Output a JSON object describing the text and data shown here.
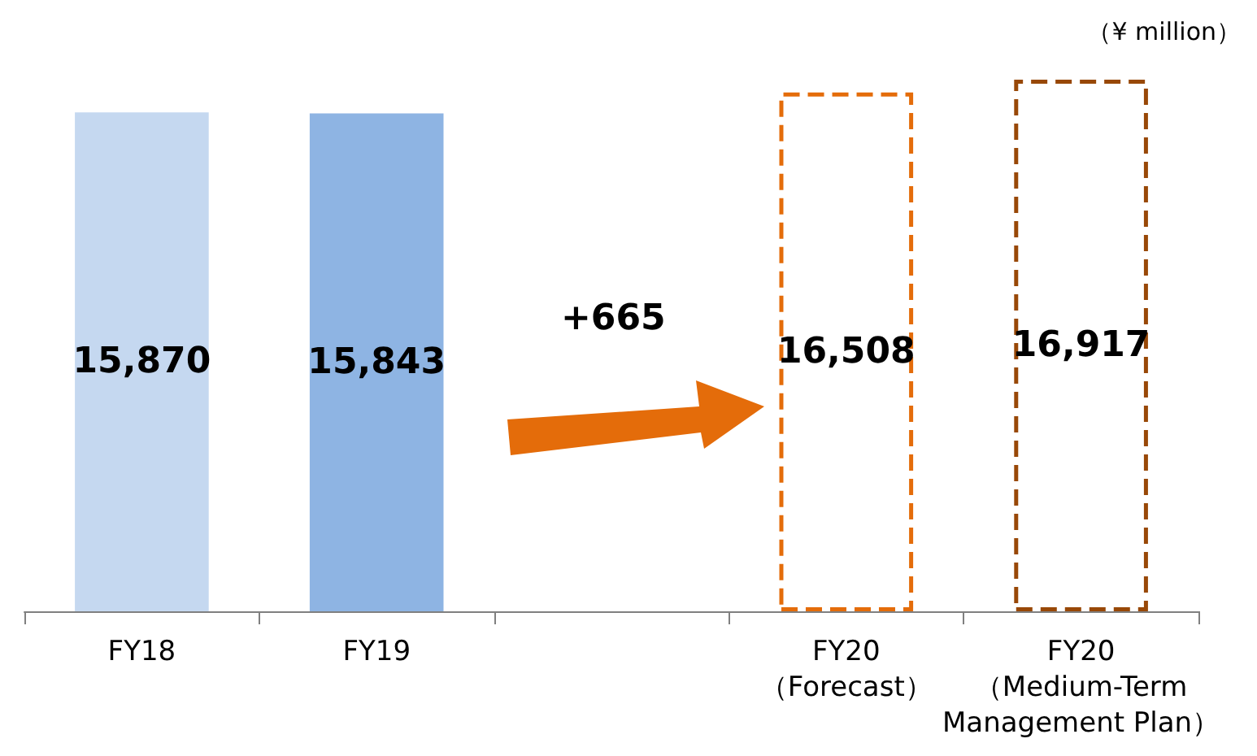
{
  "chart_data": {
    "type": "bar",
    "categories": [
      "FY18",
      "FY19",
      null,
      "FY20\n（Forecast）",
      "FY20\n（Medium-Term\nManagement Plan）"
    ],
    "series": [
      {
        "values": [
          15870,
          15843,
          null,
          null,
          null
        ],
        "value_labels": [
          "15,870",
          "15,843",
          null,
          null,
          null
        ],
        "colors": [
          "#c5d8f0",
          "#8eb4e3",
          null,
          null,
          null
        ]
      },
      {
        "values": [
          null,
          null,
          null,
          16508,
          16917
        ],
        "value_labels": [
          null,
          null,
          null,
          "16,508",
          "16,917"
        ],
        "colors": [
          null,
          null,
          null,
          "#e46c0a",
          "#984807"
        ],
        "line_style": "dashed"
      }
    ],
    "tick_labels": "x",
    "annotations": [
      "（¥ million）",
      "+665"
    ]
  }
}
